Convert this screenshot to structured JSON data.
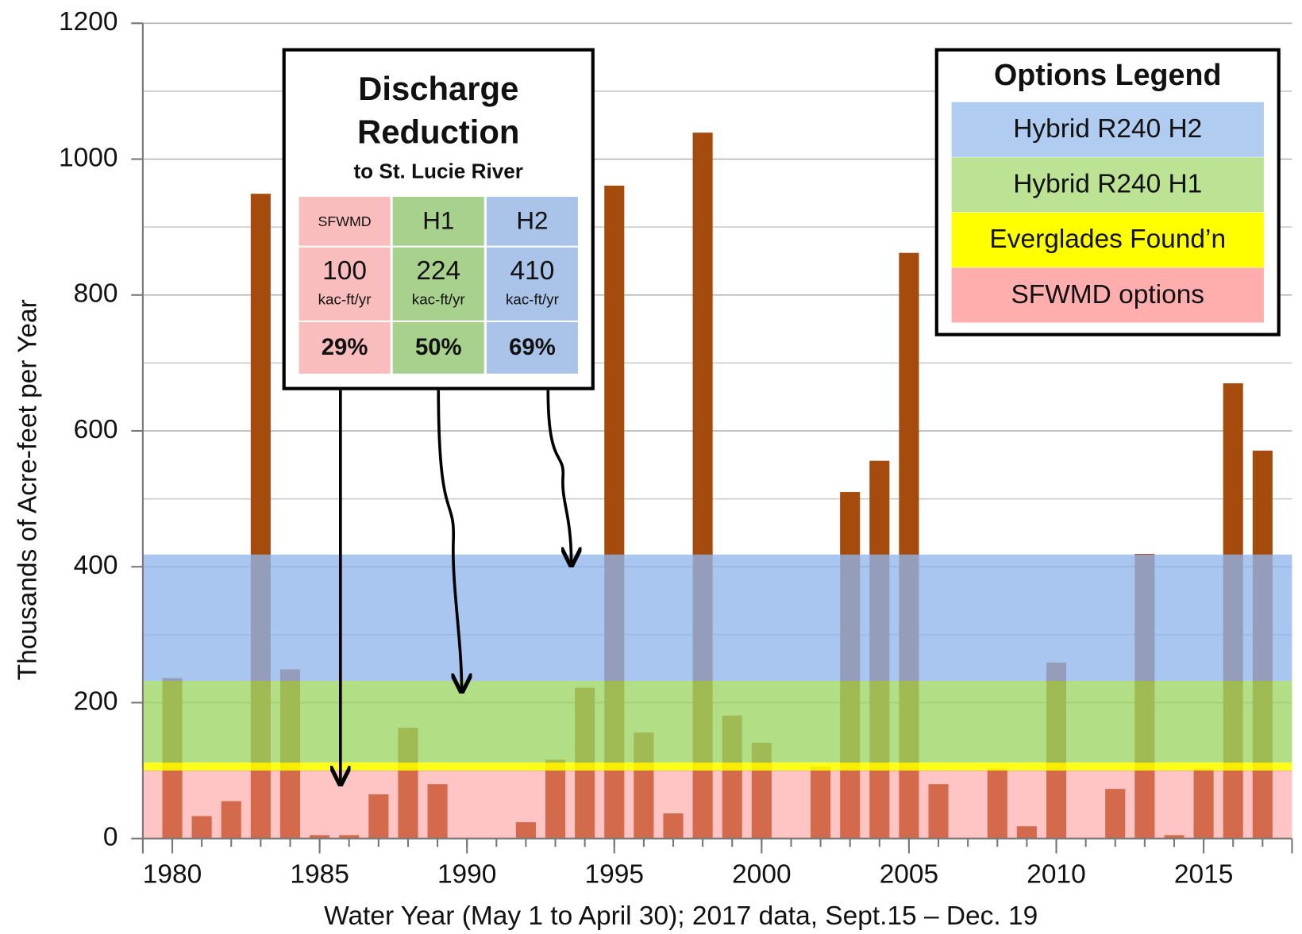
{
  "chart_data": {
    "type": "bar",
    "xlabel": "Water Year (May 1 to April 30); 2017 data, Sept.15 – Dec. 19",
    "ylabel": "Thousands of Acre-feet per Year",
    "x": [
      1980,
      1981,
      1982,
      1983,
      1984,
      1985,
      1986,
      1987,
      1988,
      1989,
      1990,
      1991,
      1992,
      1993,
      1994,
      1995,
      1996,
      1997,
      1998,
      1999,
      2000,
      2001,
      2002,
      2003,
      2004,
      2005,
      2006,
      2007,
      2008,
      2009,
      2010,
      2011,
      2012,
      2013,
      2014,
      2015,
      2016,
      2017
    ],
    "values": [
      236,
      33,
      55,
      949,
      249,
      5,
      5,
      65,
      163,
      80,
      0,
      0,
      24,
      116,
      222,
      961,
      156,
      37,
      1039,
      181,
      141,
      0,
      106,
      510,
      556,
      862,
      80,
      0,
      103,
      18,
      259,
      0,
      73,
      419,
      5,
      103,
      670,
      571
    ],
    "color": "#a64b0e",
    "xlim": [
      1979,
      2018
    ],
    "xticks": [
      1980,
      1985,
      1990,
      1995,
      2000,
      2005,
      2010,
      2015
    ],
    "ylim": [
      0,
      1200
    ],
    "yticks": [
      0,
      200,
      400,
      600,
      800,
      1000,
      1200
    ],
    "minor_yticks": [
      100,
      300,
      500,
      700,
      900,
      1100
    ],
    "grid": true,
    "legend_title": "Options Legend",
    "bands": [
      {
        "name": "Hybrid R240 H2",
        "from": 232,
        "to": 418,
        "color": "#8fb6ea"
      },
      {
        "name": "Hybrid R240 H1",
        "from": 112,
        "to": 232,
        "color": "#9fd666"
      },
      {
        "name": "Everglades Found’n",
        "from": 100,
        "to": 112,
        "color": "#ffff00"
      },
      {
        "name": "SFWMD options",
        "from": 0,
        "to": 100,
        "color": "#ff8a8a"
      }
    ],
    "annotation": {
      "title": [
        "Discharge",
        "Reduction"
      ],
      "subtitle": "to St. Lucie River",
      "columns": [
        "SFWMD",
        "H1",
        "H2"
      ],
      "values": [
        100,
        224,
        410
      ],
      "unit": "kac-ft/yr",
      "percents": [
        "29%",
        "50%",
        "69%"
      ],
      "colors": [
        "#f9bdbd",
        "#a9d18e",
        "#a9c4e8"
      ]
    }
  }
}
